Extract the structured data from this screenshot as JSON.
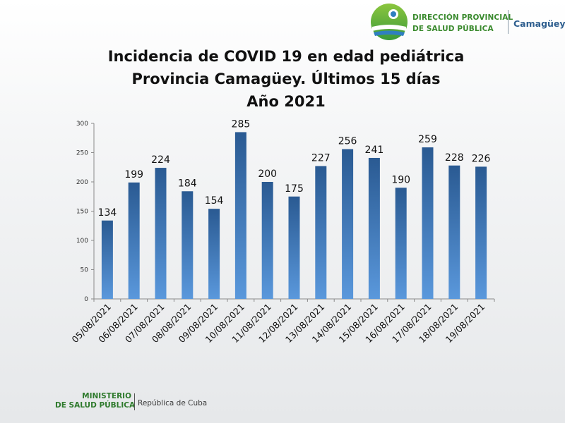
{
  "header": {
    "org_line1": "DIRECCIÓN PROVINCIAL",
    "org_line2": "DE SALUD PÚBLICA",
    "city": "Camagüey",
    "colors": {
      "green": "#3a8a2e",
      "blue": "#2f5f8f"
    }
  },
  "footer": {
    "ministry_line1": "MINISTERIO",
    "ministry_line2": "DE SALUD PÚBLICA",
    "country": "República de Cuba"
  },
  "chart_data": {
    "type": "bar",
    "title_lines": [
      "Incidencia de COVID 19 en edad pediátrica",
      "Provincia Camagüey. Últimos 15 días",
      "Año 2021"
    ],
    "xlabel": "",
    "ylabel": "",
    "categories": [
      "05/08/2021",
      "06/08/2021",
      "07/08/2021",
      "08/08/2021",
      "09/08/2021",
      "10/08/2021",
      "11/08/2021",
      "12/08/2021",
      "13/08/2021",
      "14/08/2021",
      "15/08/2021",
      "16/08/2021",
      "17/08/2021",
      "18/08/2021",
      "19/08/2021"
    ],
    "values": [
      134,
      199,
      224,
      184,
      154,
      285,
      200,
      175,
      227,
      256,
      241,
      190,
      259,
      228,
      226
    ],
    "ylim": [
      0,
      300
    ],
    "yticks": [
      0,
      50,
      100,
      150,
      200,
      250,
      300
    ],
    "grid": false,
    "legend": "none",
    "data_labels": true,
    "bar_color_top": "#2a5a92",
    "bar_color_bottom": "#5a98dc"
  }
}
